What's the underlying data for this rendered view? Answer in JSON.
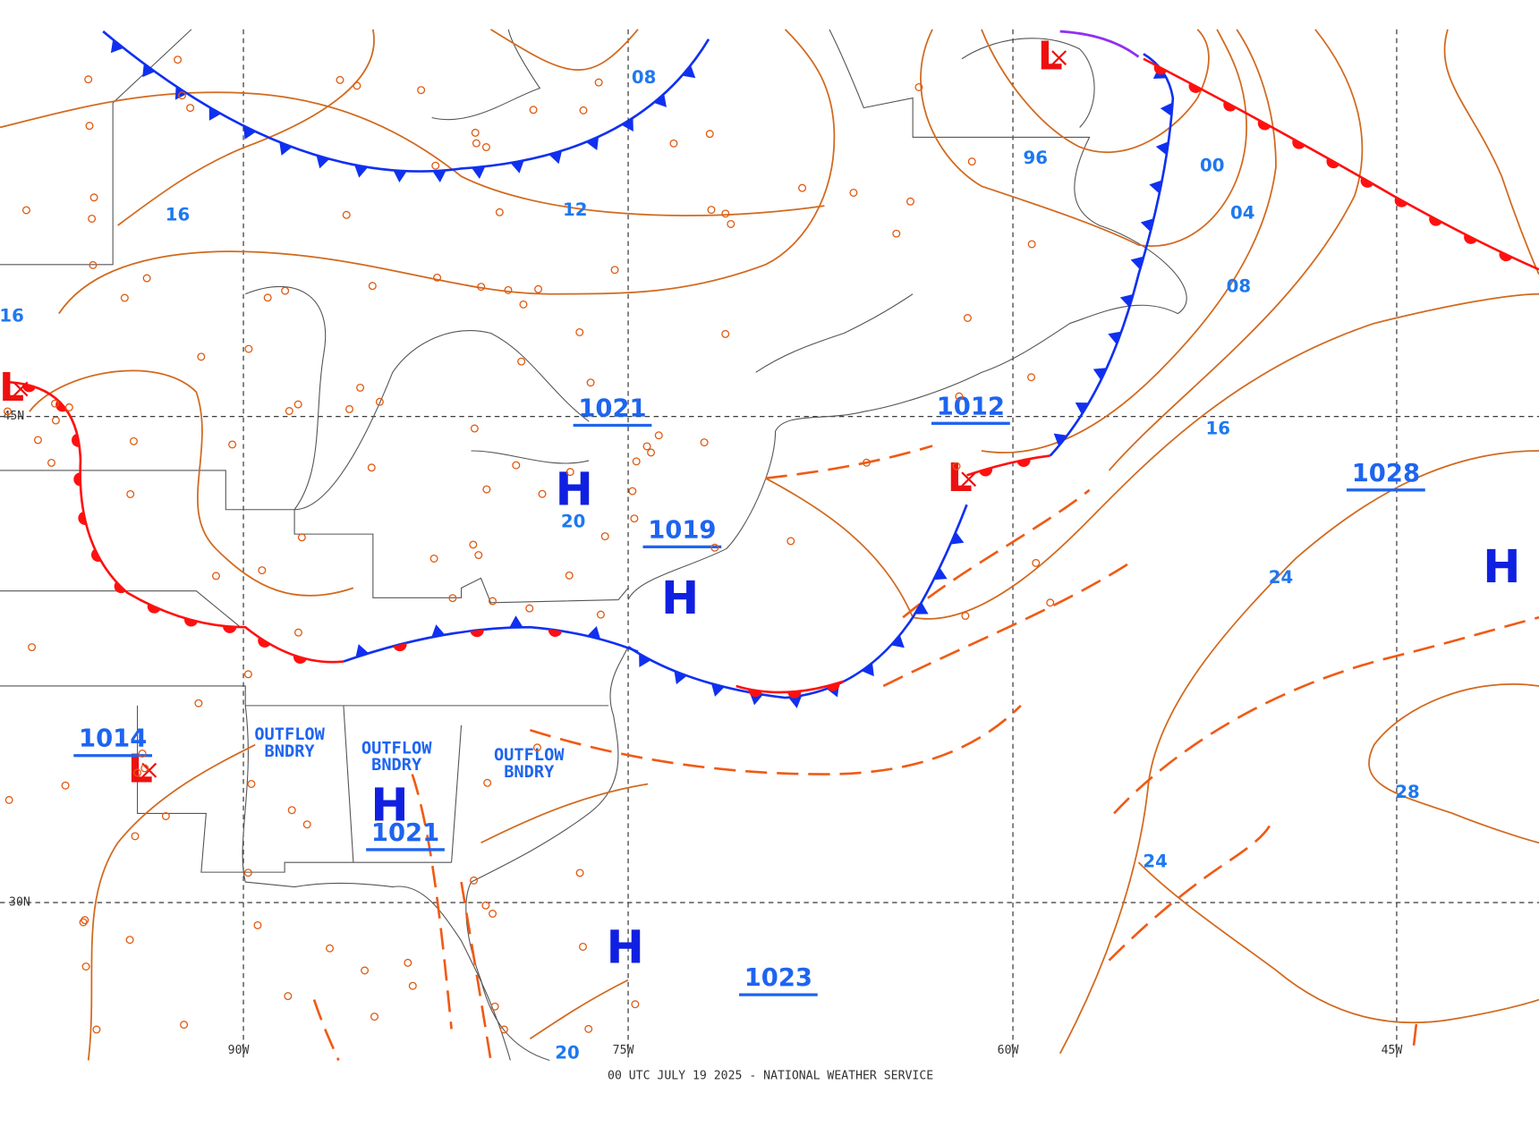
{
  "map": {
    "caption": "00 UTC JULY 19 2025 - NATIONAL WEATHER SERVICE",
    "longitudes": [
      "90W",
      "75W",
      "60W",
      "45W"
    ],
    "latitudes": [
      "45N",
      "30N"
    ],
    "highs": [
      "H",
      "H",
      "H",
      "H",
      "H"
    ],
    "lows": [
      "L",
      "L",
      "L",
      "L"
    ],
    "pressure_labels": [
      "1021",
      "1019",
      "1012",
      "1028",
      "1014",
      "1021",
      "1023"
    ],
    "isobar_labels": [
      "08",
      "12",
      "16",
      "16",
      "96",
      "00",
      "04",
      "08",
      "16",
      "24",
      "28",
      "24",
      "20",
      "20"
    ],
    "boundary_labels": [
      {
        "line1": "OUTFLOW",
        "line2": "BNDRY"
      },
      {
        "line1": "OUTFLOW",
        "line2": "BNDRY"
      },
      {
        "line1": "OUTFLOW",
        "line2": "BNDRY"
      }
    ]
  }
}
